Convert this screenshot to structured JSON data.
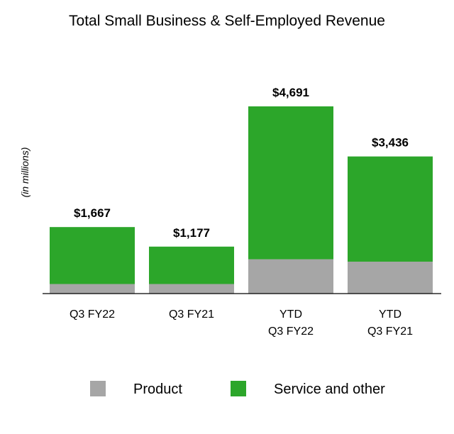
{
  "chart_data": {
    "type": "bar",
    "stacked": true,
    "title": "Total Small Business & Self-Employed Revenue",
    "ylabel": "(in millions)",
    "categories": [
      [
        "Q3 FY22"
      ],
      [
        "Q3 FY21"
      ],
      [
        "YTD",
        "Q3 FY22"
      ],
      [
        "YTD",
        "Q3 FY21"
      ]
    ],
    "totals_labels": [
      "$1,667",
      "$1,177",
      "$4,691",
      "$3,436"
    ],
    "series": [
      {
        "name": "Product",
        "color": "#a6a6a6",
        "values": [
          240,
          240,
          860,
          800
        ]
      },
      {
        "name": "Service and other",
        "color": "#2ca62a",
        "values": [
          1427,
          937,
          3831,
          2636
        ]
      }
    ],
    "ylim": [
      0,
      4691
    ],
    "grid": false,
    "legend_position": "bottom"
  }
}
